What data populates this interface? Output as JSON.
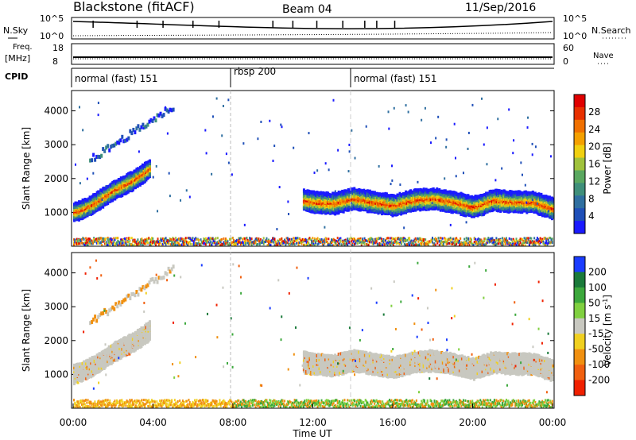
{
  "header": {
    "title": "Blackstone (fitACF)",
    "beam": "Beam 04",
    "date": "11/Sep/2016"
  },
  "summary_panels": {
    "nsky_label": "N.Sky",
    "nsearch_label": "N.Search",
    "nsky_ticks": [
      "10^5",
      "10^0"
    ],
    "nsearch_ticks": [
      "10^5",
      "10^0"
    ],
    "freq_label_top": "Freq.",
    "freq_label_unit": "[MHz]",
    "freq_ticks": [
      "18",
      "8"
    ],
    "nave_label": "Nave",
    "nave_ticks": [
      "60",
      "0"
    ],
    "cpid_label": "CPID",
    "cpid_segments": [
      {
        "label": "normal (fast) 151",
        "start_hour": 0,
        "end_hour": 8
      },
      {
        "label": "rbsp 200",
        "start_hour": 8,
        "end_hour": 14
      },
      {
        "label": "normal (fast) 151",
        "start_hour": 14,
        "end_hour": 24
      }
    ]
  },
  "chart_data": [
    {
      "type": "heatmap",
      "name": "power",
      "ylabel": "Slant Range [km]",
      "ylim": [
        0,
        4600
      ],
      "yticks": [
        1000,
        2000,
        3000,
        4000
      ],
      "xlim": [
        0,
        24
      ],
      "colorbar_label": "Power [dB]",
      "colorbar_ticks": [
        4,
        8,
        12,
        16,
        20,
        24,
        28
      ],
      "colorbar_colors": [
        "#1a1aff",
        "#1f4fb8",
        "#2f6fa0",
        "#3f8f7a",
        "#5aa860",
        "#a0c23c",
        "#f0d010",
        "#f4a000",
        "#f07000",
        "#e83000",
        "#e00000"
      ],
      "bands": [
        {
          "x": [
            0.0,
            0.5,
            1,
            1.5,
            2,
            2.5,
            3,
            3.5,
            3.8
          ],
          "y": [
            1050,
            1150,
            1300,
            1500,
            1700,
            1850,
            2000,
            2200,
            2350
          ],
          "halfwidth": 250
        },
        {
          "x": [
            11.5,
            12,
            13,
            14,
            15,
            16,
            17,
            18,
            19,
            20,
            21,
            22,
            23,
            24
          ],
          "y": [
            1400,
            1350,
            1300,
            1450,
            1350,
            1250,
            1400,
            1450,
            1350,
            1200,
            1400,
            1350,
            1350,
            1150
          ],
          "halfwidth": 280
        }
      ]
    },
    {
      "type": "heatmap",
      "name": "velocity",
      "ylabel": "Slant Range [km]",
      "ylim": [
        0,
        4600
      ],
      "yticks": [
        1000,
        2000,
        3000,
        4000
      ],
      "xlim": [
        0,
        24
      ],
      "xlabel": "Time UT",
      "xticks": [
        "00:00",
        "04:00",
        "08:00",
        "12:00",
        "16:00",
        "20:00",
        "00:00"
      ],
      "colorbar_label": "Velocity [m s^-1]",
      "colorbar_ticks": [
        "200",
        "100",
        "50",
        "15",
        "-15",
        "-50",
        "-100",
        "-200"
      ],
      "colorbar_colors": [
        "#1a3cff",
        "#1a7a3a",
        "#3ca83c",
        "#80d040",
        "#c8c8c0",
        "#f0d020",
        "#f09010",
        "#f06010",
        "#f02000"
      ]
    }
  ]
}
